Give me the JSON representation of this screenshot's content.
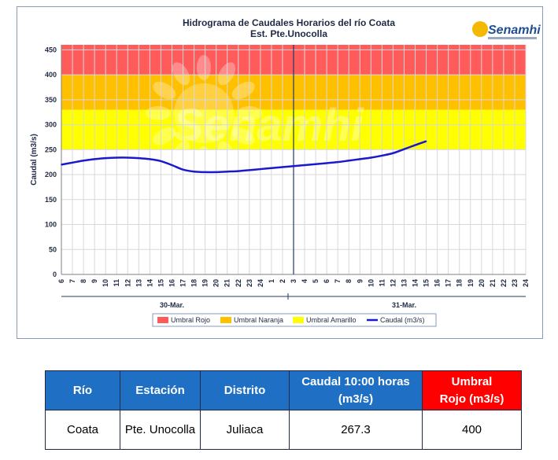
{
  "chart_data": {
    "type": "line",
    "title": "Hidrograma de Caudales Horarios del río Coata",
    "subtitle": "Est. Pte.Unocolla",
    "ylabel": "Caudal  (m3/s)",
    "xlabel": "",
    "ylim": [
      0,
      460
    ],
    "yticks": [
      0,
      50,
      100,
      150,
      200,
      250,
      300,
      350,
      400,
      450
    ],
    "hour_ticks": [
      "6",
      "7",
      "8",
      "9",
      "10",
      "11",
      "12",
      "13",
      "14",
      "15",
      "16",
      "17",
      "18",
      "19",
      "20",
      "21",
      "22",
      "23",
      "24",
      "1",
      "2",
      "3",
      "4",
      "5",
      "6",
      "7",
      "8",
      "9",
      "10",
      "11",
      "12",
      "13",
      "14",
      "15",
      "16",
      "17",
      "18",
      "19",
      "20",
      "21",
      "22",
      "23",
      "24"
    ],
    "day_labels": [
      "30-Mar.",
      "31-Mar."
    ],
    "grid": true,
    "legend_position": "bottom",
    "current_time_marker": "3 (31-Mar.)",
    "threshold_bands": [
      {
        "name": "Umbral Rojo",
        "from": 400,
        "to": 460,
        "color": "#ff5b5b"
      },
      {
        "name": "Umbral Naranja",
        "from": 330,
        "to": 400,
        "color": "#ffc000"
      },
      {
        "name": "Umbral Amarillo",
        "from": 250,
        "to": 330,
        "color": "#ffff00"
      }
    ],
    "series": [
      {
        "name": "Caudal (m3/s)",
        "color": "#1a1acc",
        "points": [
          {
            "h": 0,
            "y": 220
          },
          {
            "h": 1,
            "y": 224
          },
          {
            "h": 2,
            "y": 228
          },
          {
            "h": 3,
            "y": 231
          },
          {
            "h": 4,
            "y": 233
          },
          {
            "h": 5,
            "y": 234
          },
          {
            "h": 6,
            "y": 234
          },
          {
            "h": 7,
            "y": 233
          },
          {
            "h": 8,
            "y": 231
          },
          {
            "h": 9,
            "y": 227
          },
          {
            "h": 10,
            "y": 219
          },
          {
            "h": 11,
            "y": 210
          },
          {
            "h": 12,
            "y": 206
          },
          {
            "h": 13,
            "y": 205
          },
          {
            "h": 14,
            "y": 205
          },
          {
            "h": 15,
            "y": 206
          },
          {
            "h": 16,
            "y": 207
          },
          {
            "h": 17,
            "y": 209
          },
          {
            "h": 18,
            "y": 211
          },
          {
            "h": 19,
            "y": 213
          },
          {
            "h": 20,
            "y": 215
          },
          {
            "h": 21,
            "y": 217
          },
          {
            "h": 22,
            "y": 219
          },
          {
            "h": 23,
            "y": 221
          },
          {
            "h": 24,
            "y": 223
          },
          {
            "h": 25,
            "y": 225
          },
          {
            "h": 26,
            "y": 228
          },
          {
            "h": 27,
            "y": 231
          },
          {
            "h": 28,
            "y": 234
          },
          {
            "h": 29,
            "y": 238
          },
          {
            "h": 30,
            "y": 243
          },
          {
            "h": 31,
            "y": 251
          },
          {
            "h": 32,
            "y": 259
          },
          {
            "h": 33,
            "y": 267
          }
        ]
      }
    ]
  },
  "logo": {
    "text": "Senamhi",
    "watermark": "Senamhi"
  },
  "legend": [
    {
      "label": "Umbral Rojo",
      "color": "#ff5b5b",
      "kind": "box"
    },
    {
      "label": "Umbral Naranja",
      "color": "#ffc000",
      "kind": "box"
    },
    {
      "label": "Umbral Amarillo",
      "color": "#ffff00",
      "kind": "box"
    },
    {
      "label": "Caudal (m3/s)",
      "color": "#1a1acc",
      "kind": "line"
    }
  ],
  "table": {
    "headers": [
      "Río",
      "Estación",
      "Distrito",
      "Caudal  10:00 horas\n(m3/s)",
      "Umbral\nRojo (m3/s)"
    ],
    "row": [
      "Coata",
      "Pte. Unocolla",
      "Juliaca",
      "267.3",
      "400"
    ]
  }
}
